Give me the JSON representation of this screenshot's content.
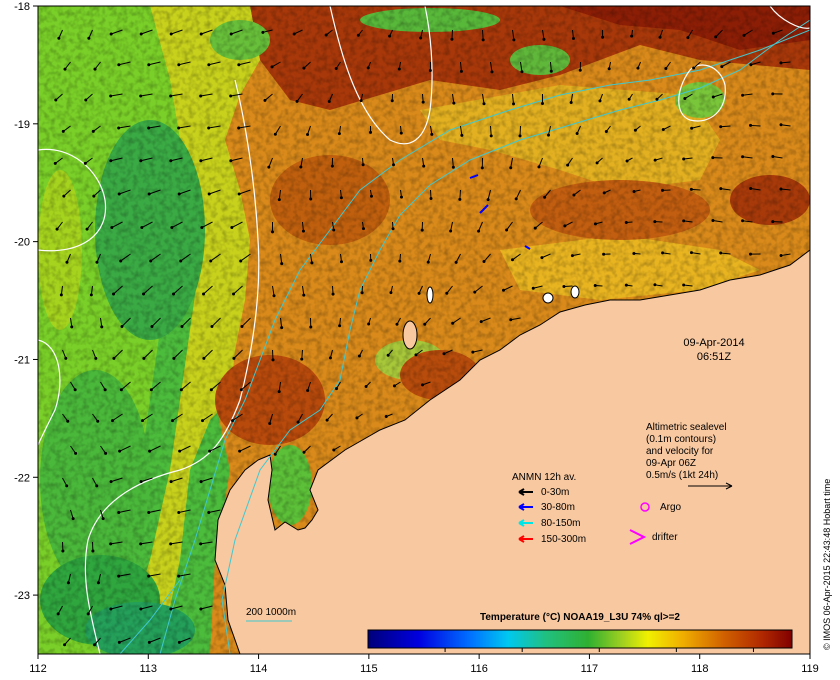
{
  "map": {
    "lon_range": [
      112,
      119
    ],
    "lat_range": [
      -23.5,
      -18
    ],
    "x_ticks": [
      "112",
      "113",
      "114",
      "115",
      "116",
      "117",
      "118",
      "119"
    ],
    "y_ticks": [
      "-18",
      "-19",
      "-20",
      "-21",
      "-22",
      "-23"
    ],
    "colors": {
      "land": "#f8c8a0",
      "current_0_30": "#000000",
      "current_30_80": "#0000ff",
      "current_80_150": "#00e5e5",
      "current_150_300": "#ff0000",
      "argo": "#ff00ff",
      "drifter": "#ff00ff",
      "contour": "#ffffff",
      "isobath": "#40c8d0"
    }
  },
  "datetime": {
    "date": "09-Apr-2014",
    "time": "06:51Z"
  },
  "altimetry_note": [
    "Altimetric sealevel",
    "(0.1m contours)",
    "and velocity for",
    "09-Apr 06Z",
    "0.5m/s (1kt 24h)"
  ],
  "legend": {
    "title": "ANMN 12h av.",
    "items": [
      {
        "label": "0-30m",
        "color": "#000000"
      },
      {
        "label": "30-80m",
        "color": "#0000ff"
      },
      {
        "label": "80-150m",
        "color": "#00e5e5"
      },
      {
        "label": "150-300m",
        "color": "#ff0000"
      }
    ],
    "argo": "Argo",
    "drifter": "drifter"
  },
  "isobath_label": "200  1000m",
  "colorbar": {
    "title": "Temperature (°C) NOAA19_L3U 74% ql>=2",
    "ticks": [
      "26",
      "27",
      "28",
      "29",
      "30"
    ],
    "range": [
      25,
      30.5
    ]
  },
  "credit": "© IMOS 06-Apr-2015 22:43:48 Hobart time"
}
